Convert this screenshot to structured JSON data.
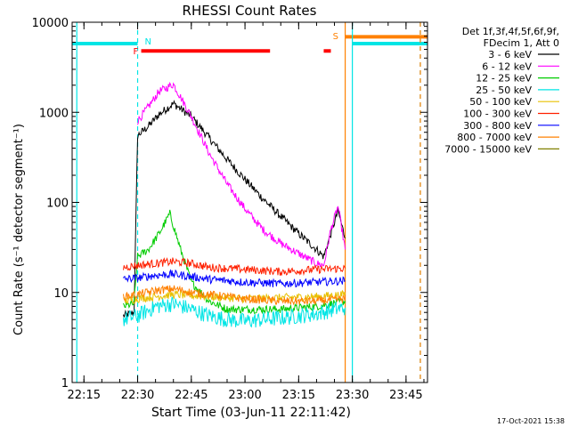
{
  "chart_data": {
    "type": "line",
    "title": "RHESSI Count Rates",
    "xlabel": "Start Time (03-Jun-11 22:11:42)",
    "ylabel": "Count Rate (s⁻¹ detector segment⁻¹)",
    "yscale": "log",
    "ylim": [
      1,
      10000
    ],
    "xlim": [
      "22:11:42",
      "23:51:00"
    ],
    "x_ticks": [
      "22:15",
      "22:30",
      "22:45",
      "23:00",
      "23:15",
      "23:30",
      "23:45"
    ],
    "y_ticks": [
      "1",
      "10",
      "100",
      "1000",
      "10000"
    ],
    "grid": false,
    "legend_position": "right",
    "legend_header": [
      "Det 1f,3f,4f,5f,6f,9f,",
      "FDecim 1, Att 0"
    ],
    "series": [
      {
        "name": "3 - 6 keV",
        "color": "#000000",
        "x": [
          "22:26",
          "22:29",
          "22:30",
          "22:33",
          "22:36",
          "22:40",
          "22:45",
          "22:50",
          "22:55",
          "23:00",
          "23:05",
          "23:10",
          "23:15",
          "23:20",
          "23:22",
          "23:24",
          "23:26",
          "23:28"
        ],
        "y": [
          5.5,
          6,
          550,
          700,
          950,
          1250,
          900,
          520,
          300,
          180,
          110,
          70,
          45,
          30,
          25,
          45,
          80,
          40
        ]
      },
      {
        "name": "6 - 12 keV",
        "color": "#ff00ff",
        "x": [
          "22:30",
          "22:33",
          "22:36",
          "22:40",
          "22:45",
          "22:50",
          "22:55",
          "23:00",
          "23:05",
          "23:10",
          "23:15",
          "23:20",
          "23:22",
          "23:24",
          "23:26",
          "23:28"
        ],
        "y": [
          800,
          1150,
          1700,
          2050,
          900,
          350,
          160,
          85,
          50,
          35,
          27,
          21,
          20,
          50,
          90,
          30
        ]
      },
      {
        "name": "12 - 25 keV",
        "color": "#00cc00",
        "x": [
          "22:26",
          "22:29",
          "22:30",
          "22:33",
          "22:36",
          "22:39",
          "22:42",
          "22:45",
          "22:50",
          "22:55",
          "23:00",
          "23:10",
          "23:20",
          "23:28"
        ],
        "y": [
          7,
          7.5,
          25,
          30,
          45,
          75,
          30,
          13,
          8,
          6.5,
          6.5,
          6.5,
          7,
          8
        ]
      },
      {
        "name": "25 - 50 keV",
        "color": "#00e5e5",
        "x": [
          "22:26",
          "22:30",
          "22:35",
          "22:40",
          "22:45",
          "22:50",
          "22:55",
          "23:00",
          "23:05",
          "23:10",
          "23:15",
          "23:20",
          "23:25",
          "23:28"
        ],
        "y": [
          5,
          5.5,
          7,
          7.5,
          6.5,
          5.5,
          5,
          4.8,
          5,
          5.2,
          5.5,
          5.8,
          6.5,
          6.8
        ]
      },
      {
        "name": "50 - 100 keV",
        "color": "#e8c000",
        "x": [
          "22:26",
          "22:30",
          "22:40",
          "23:00",
          "23:20",
          "23:28"
        ],
        "y": [
          8,
          8.5,
          9.5,
          8.5,
          9,
          9.5
        ]
      },
      {
        "name": "100 - 300 keV",
        "color": "#ff2000",
        "x": [
          "22:26",
          "22:30",
          "22:35",
          "22:40",
          "22:45",
          "22:50",
          "23:00",
          "23:10",
          "23:20",
          "23:28"
        ],
        "y": [
          19,
          20,
          21,
          22,
          21,
          19,
          18,
          17,
          18,
          18.5
        ]
      },
      {
        "name": "300 - 800 keV",
        "color": "#0000ff",
        "x": [
          "22:26",
          "22:30",
          "22:35",
          "22:40",
          "22:45",
          "22:50",
          "23:00",
          "23:10",
          "23:20",
          "23:28"
        ],
        "y": [
          14,
          14.5,
          15.5,
          16,
          15,
          14,
          13,
          12.5,
          13,
          13.5
        ]
      },
      {
        "name": "800 - 7000 keV",
        "color": "#ff8000",
        "x": [
          "22:26",
          "22:30",
          "22:35",
          "22:40",
          "22:45",
          "22:50",
          "23:00",
          "23:10",
          "23:20",
          "23:28"
        ],
        "y": [
          9,
          9.5,
          10.5,
          11,
          10,
          9.5,
          8.5,
          8,
          8,
          8.5
        ]
      },
      {
        "name": "7000 - 15000 keV",
        "color": "#808000",
        "x": [],
        "y": []
      }
    ],
    "annotations": [
      {
        "label": "N",
        "color": "#00e5e5",
        "time": "22:30"
      },
      {
        "label": "F",
        "color": "#ff0000",
        "time": "22:31"
      },
      {
        "label": "S",
        "color": "#ff8000",
        "time": "23:28"
      }
    ],
    "flag_bars": [
      {
        "name": "night",
        "color": "#00e5e5",
        "level": 5800,
        "segments": [
          [
            "22:11:42",
            "22:30"
          ],
          [
            "23:30",
            "23:51"
          ]
        ]
      },
      {
        "name": "flare",
        "color": "#ff0000",
        "level": 4800,
        "segments": [
          [
            "22:31",
            "23:07"
          ],
          [
            "23:22",
            "23:24"
          ]
        ]
      },
      {
        "name": "saa",
        "color": "#ff8000",
        "level": 6900,
        "segments": [
          [
            "23:28",
            "23:51"
          ]
        ]
      }
    ],
    "vertical_markers": [
      {
        "time": "22:13",
        "color": "#00e5e5",
        "style": "solid"
      },
      {
        "time": "22:30",
        "color": "#00e5e5",
        "style": "dashed"
      },
      {
        "time": "23:28",
        "color": "#ff8000",
        "style": "solid"
      },
      {
        "time": "23:30",
        "color": "#00e5e5",
        "style": "solid"
      },
      {
        "time": "23:49",
        "color": "#00e5e5",
        "style": "dashed"
      },
      {
        "time": "23:49",
        "color": "#ff8000",
        "style": "dashed"
      }
    ],
    "timestamp": "17-Oct-2021 15:38"
  }
}
